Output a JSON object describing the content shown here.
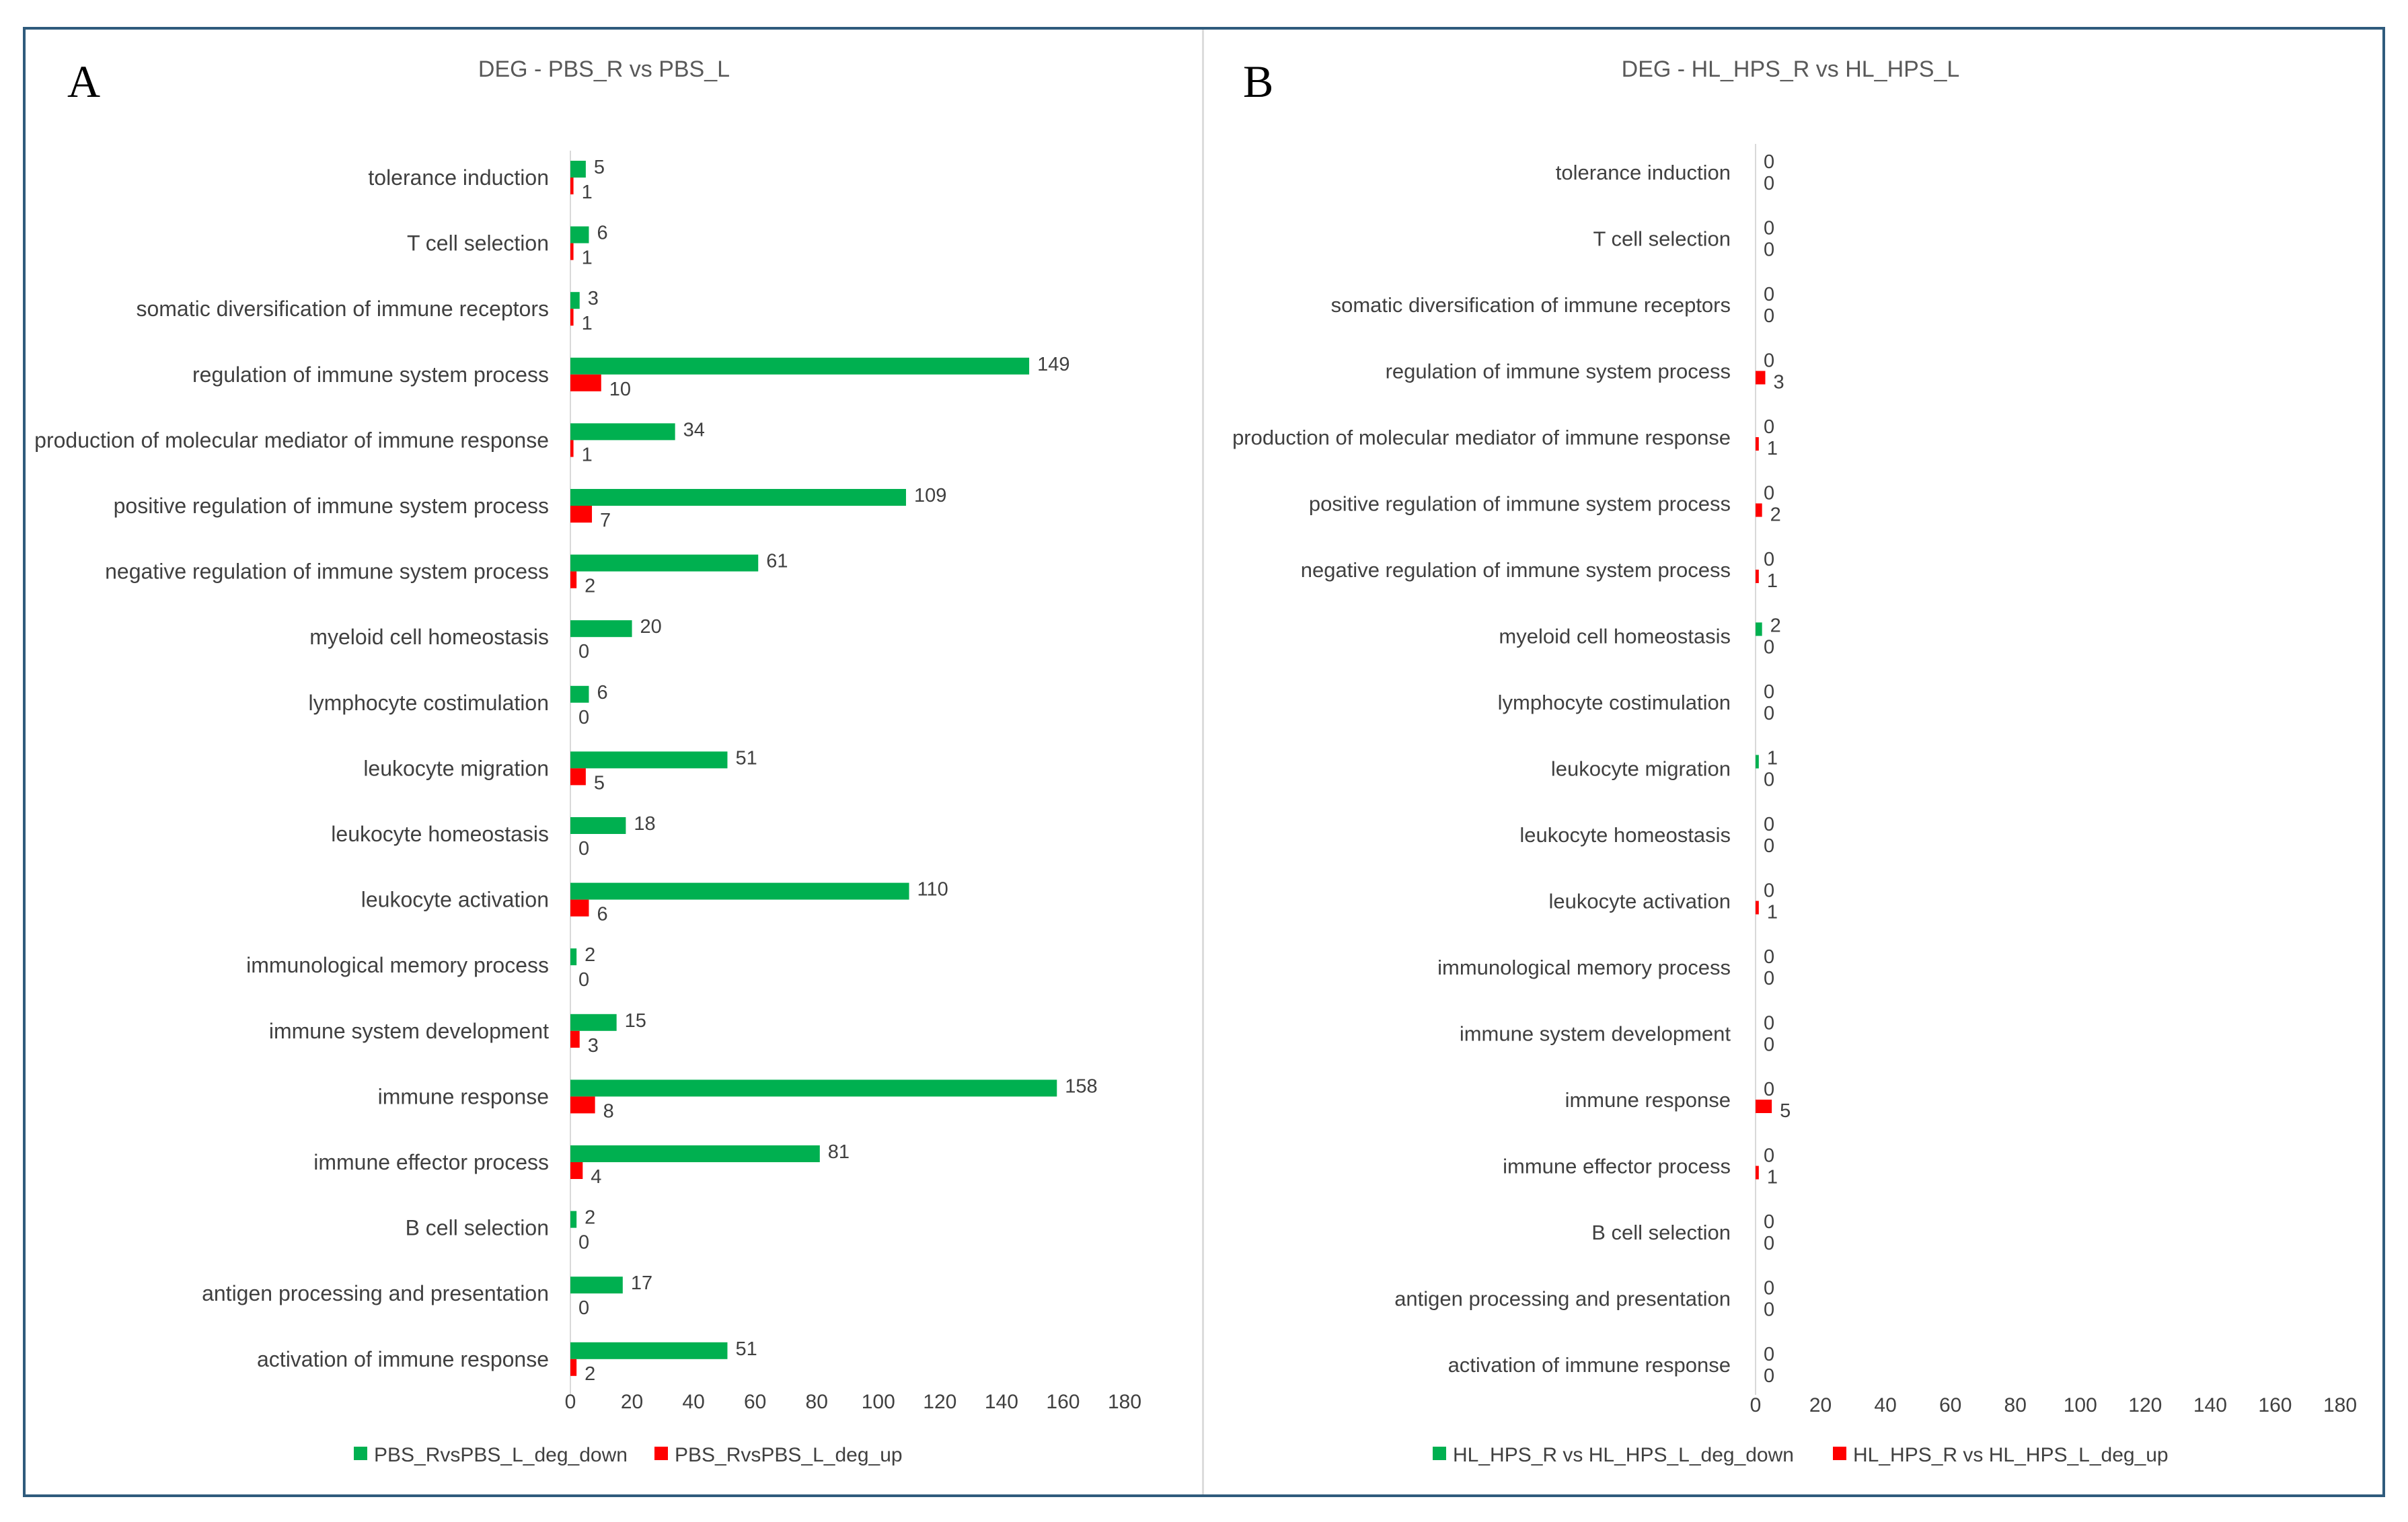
{
  "panels": [
    {
      "letter": "A",
      "chart_data": {
        "type": "bar",
        "orientation": "horizontal",
        "title": "DEG - PBS_R vs PBS_L",
        "xlabel": "",
        "ylabel": "",
        "xlim": [
          0,
          180
        ],
        "xticks": [
          0,
          20,
          40,
          60,
          80,
          100,
          120,
          140,
          160,
          180
        ],
        "legend_position": "bottom",
        "categories": [
          "tolerance induction",
          "T cell selection",
          "somatic diversification of immune receptors",
          "regulation of immune system process",
          "production of molecular mediator of immune response",
          "positive regulation of immune system process",
          "negative regulation of immune system process",
          "myeloid cell homeostasis",
          "lymphocyte costimulation",
          "leukocyte migration",
          "leukocyte homeostasis",
          "leukocyte activation",
          "immunological memory process",
          "immune system development",
          "immune response",
          "immune effector process",
          "B cell selection",
          "antigen processing and presentation",
          "activation of immune response"
        ],
        "series": [
          {
            "name": "PBS_RvsPBS_L_deg_down",
            "color": "#00b050",
            "values": [
              5,
              6,
              3,
              149,
              34,
              109,
              61,
              20,
              6,
              51,
              18,
              110,
              2,
              15,
              158,
              81,
              2,
              17,
              51
            ]
          },
          {
            "name": "PBS_RvsPBS_L_deg_up",
            "color": "#ff0000",
            "values": [
              1,
              1,
              1,
              10,
              1,
              7,
              2,
              0,
              0,
              5,
              0,
              6,
              0,
              3,
              8,
              4,
              0,
              0,
              2
            ]
          }
        ]
      }
    },
    {
      "letter": "B",
      "chart_data": {
        "type": "bar",
        "orientation": "horizontal",
        "title": "DEG - HL_HPS_R vs HL_HPS_L",
        "xlabel": "",
        "ylabel": "",
        "xlim": [
          0,
          180
        ],
        "xticks": [
          0,
          20,
          40,
          60,
          80,
          100,
          120,
          140,
          160,
          180
        ],
        "legend_position": "bottom",
        "categories": [
          "tolerance induction",
          "T cell selection",
          "somatic diversification of immune receptors",
          "regulation of immune system process",
          "production of molecular mediator of immune response",
          "positive regulation of immune system process",
          "negative regulation of immune system process",
          "myeloid cell homeostasis",
          "lymphocyte costimulation",
          "leukocyte migration",
          "leukocyte homeostasis",
          "leukocyte activation",
          "immunological memory process",
          "immune system development",
          "immune response",
          "immune effector process",
          "B cell selection",
          "antigen processing and presentation",
          "activation of immune response"
        ],
        "series": [
          {
            "name": "HL_HPS_R vs HL_HPS_L_deg_down",
            "color": "#00b050",
            "values": [
              0,
              0,
              0,
              0,
              0,
              0,
              0,
              2,
              0,
              1,
              0,
              0,
              0,
              0,
              0,
              0,
              0,
              0,
              0
            ]
          },
          {
            "name": "HL_HPS_R vs HL_HPS_L_deg_up",
            "color": "#ff0000",
            "values": [
              0,
              0,
              0,
              3,
              1,
              2,
              1,
              0,
              0,
              0,
              0,
              1,
              0,
              0,
              5,
              1,
              0,
              0,
              0
            ]
          }
        ]
      }
    }
  ]
}
